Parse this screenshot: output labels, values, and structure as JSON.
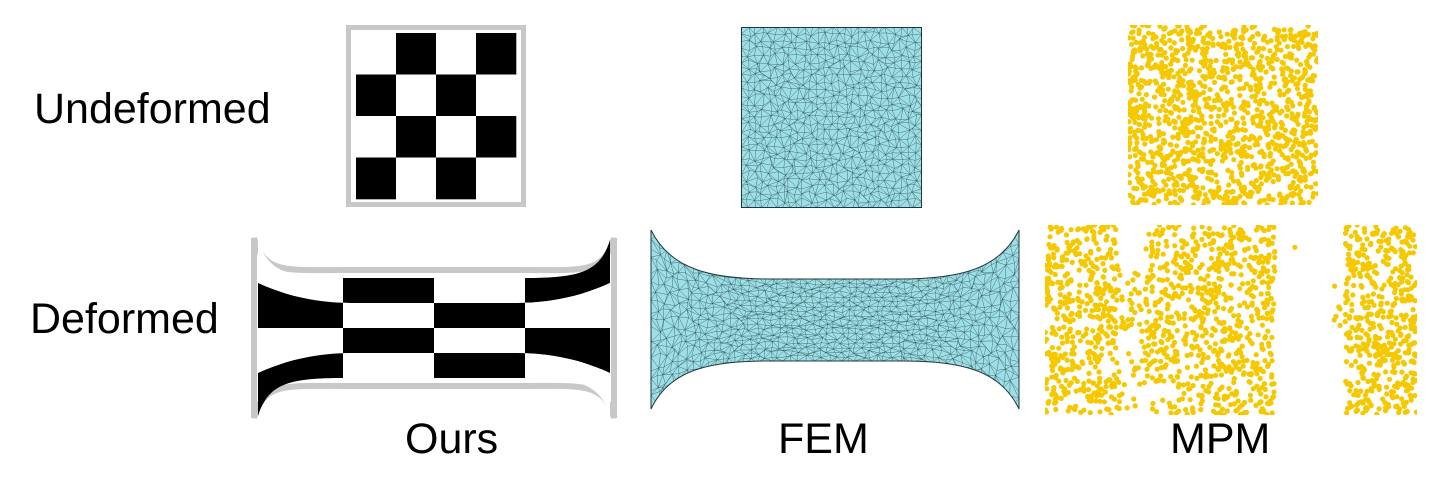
{
  "row_labels": {
    "undeformed": "Undeformed",
    "deformed": "Deformed"
  },
  "column_labels": {
    "ours": "Ours",
    "fem": "FEM",
    "mpm": "MPM"
  },
  "colors": {
    "checker_dark": "#000000",
    "checker_light": "#ffffff",
    "boundary": "#c8c8c8",
    "fem_fill": "#9ddfe6",
    "fem_edge": "#1f3a3f",
    "mpm_particle": "#f5c800"
  },
  "checker": {
    "rows": 4,
    "cols": 4
  }
}
